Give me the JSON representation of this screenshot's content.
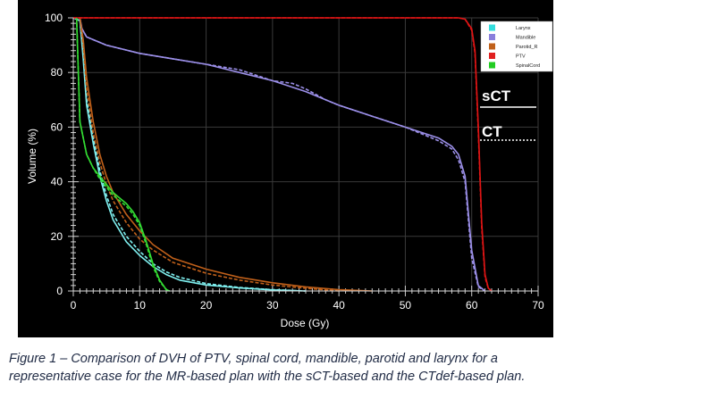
{
  "chart_data": {
    "type": "line",
    "xlabel": "Dose (Gy)",
    "ylabel": "Volume (%)",
    "xlim": [
      0,
      70
    ],
    "ylim": [
      0,
      100
    ],
    "x_ticks": [
      "0",
      "10",
      "20",
      "30",
      "40",
      "50",
      "60",
      "70"
    ],
    "y_ticks": [
      "0",
      "20",
      "40",
      "60",
      "80",
      "100"
    ],
    "grid": true,
    "legend_position": "top-right",
    "legend": [
      {
        "name": "Larynx",
        "color": "#33dddd"
      },
      {
        "name": "Mandible",
        "color": "#8a7fdc"
      },
      {
        "name": "Parotid_R",
        "color": "#c0601a"
      },
      {
        "name": "PTV",
        "color": "#e02020"
      },
      {
        "name": "SpinalCord",
        "color": "#22cc22"
      }
    ],
    "line_key": [
      {
        "label": "sCT",
        "style": "solid"
      },
      {
        "label": "CT",
        "style": "dotted"
      }
    ],
    "series": [
      {
        "name": "Larynx",
        "plan": "sCT",
        "color": "#7ff0f0",
        "x": [
          0,
          1,
          1.5,
          2,
          3,
          4,
          5,
          6,
          8,
          10,
          12,
          14,
          16,
          20,
          25,
          30,
          35
        ],
        "y": [
          100,
          99,
          85,
          68,
          54,
          42,
          33,
          26,
          18,
          13,
          9,
          6,
          4,
          2.2,
          1.1,
          0.4,
          0
        ]
      },
      {
        "name": "Larynx",
        "plan": "CT",
        "color": "#7ff0f0",
        "x": [
          0,
          1,
          1.5,
          2,
          3,
          4,
          5,
          6,
          8,
          10,
          12,
          14,
          16,
          20,
          25,
          30,
          35
        ],
        "y": [
          100,
          99,
          87,
          70,
          56,
          44,
          35,
          28,
          20,
          14.5,
          10,
          7,
          5,
          2.7,
          1.3,
          0.5,
          0
        ]
      },
      {
        "name": "Mandible",
        "plan": "sCT",
        "color": "#9b8fe8",
        "x": [
          1,
          1.3,
          2,
          5,
          10,
          15,
          20,
          25,
          30,
          35,
          40,
          45,
          50,
          55,
          57,
          58,
          59,
          60,
          61,
          62
        ],
        "y": [
          100,
          96,
          93,
          90,
          87,
          85,
          83,
          80,
          77,
          73,
          68,
          64,
          60,
          56,
          53,
          50,
          42,
          15,
          2,
          0
        ]
      },
      {
        "name": "Mandible",
        "plan": "CT",
        "color": "#9b8fe8",
        "x": [
          1,
          1.3,
          2,
          5,
          10,
          15,
          20,
          25,
          30,
          33,
          35,
          38,
          40,
          45,
          50,
          55,
          57,
          58,
          59,
          60,
          61,
          62
        ],
        "y": [
          100,
          96,
          93,
          90,
          87,
          85,
          83,
          81,
          77,
          76,
          74,
          70,
          68,
          64,
          60,
          55,
          52,
          48,
          40,
          12,
          1.5,
          0
        ]
      },
      {
        "name": "Parotid_R",
        "plan": "sCT",
        "color": "#c0601a",
        "x": [
          1,
          1.5,
          2,
          3,
          4,
          5,
          6,
          8,
          10,
          12,
          15,
          20,
          25,
          30,
          35,
          40,
          45
        ],
        "y": [
          100,
          92,
          78,
          62,
          50,
          42,
          36,
          28,
          22,
          17,
          12,
          8,
          5,
          3,
          1.5,
          0.5,
          0
        ]
      },
      {
        "name": "Parotid_R",
        "plan": "CT",
        "color": "#c0601a",
        "x": [
          1,
          1.5,
          2,
          3,
          4,
          5,
          6,
          8,
          10,
          12,
          15,
          20,
          25,
          30,
          35,
          40
        ],
        "y": [
          100,
          90,
          74,
          58,
          47,
          39,
          33,
          25,
          19,
          15,
          10.5,
          6.5,
          4,
          2.2,
          1,
          0
        ]
      },
      {
        "name": "PTV",
        "plan": "sCT",
        "color": "#e01515",
        "x": [
          0,
          58,
          59,
          60,
          60.5,
          61,
          61.5,
          62,
          62.5,
          63
        ],
        "y": [
          100,
          100,
          99.5,
          96,
          88,
          60,
          25,
          6,
          1,
          0
        ]
      },
      {
        "name": "PTV",
        "plan": "CT",
        "color": "#e01515",
        "x": [
          0,
          58,
          59,
          60,
          60.5,
          61,
          61.5,
          62,
          62.5,
          63
        ],
        "y": [
          100,
          100,
          99.5,
          95.5,
          87,
          58,
          23,
          5,
          1,
          0
        ]
      },
      {
        "name": "SpinalCord",
        "plan": "sCT",
        "color": "#33dd33",
        "x": [
          0.5,
          1,
          2,
          3,
          4,
          5,
          6,
          7,
          8,
          9,
          10,
          11,
          12,
          13,
          14,
          14.5
        ],
        "y": [
          100,
          62,
          50,
          45,
          42,
          39,
          36,
          34,
          32,
          29,
          25,
          18,
          10,
          4,
          0.5,
          0
        ]
      },
      {
        "name": "SpinalCord",
        "plan": "CT",
        "color": "#33dd33",
        "x": [
          0.5,
          1,
          2,
          3,
          4,
          5,
          6,
          7,
          8,
          9,
          10,
          11,
          12,
          13,
          14,
          14.5
        ],
        "y": [
          100,
          62,
          50,
          45,
          41,
          38,
          35,
          33,
          31,
          28,
          24,
          17,
          9,
          3.5,
          0.5,
          0
        ]
      }
    ]
  },
  "caption": {
    "line1": "Figure  1 – Comparison of DVH of PTV, spinal cord, mandible, parotid and larynx for  a",
    "line2": "representative case for  the MR-based plan with the sCT-based and the CTdef-based  plan."
  }
}
